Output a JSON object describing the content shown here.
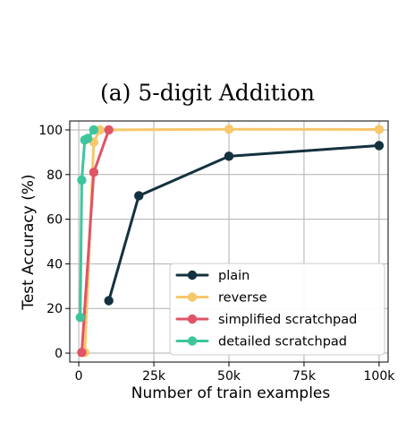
{
  "chart_data": {
    "type": "line",
    "title": "(a) 5-digit Addition",
    "xlabel": "Number of train examples",
    "ylabel": "Test Accuracy (%)",
    "xlim": [
      -3000,
      103000
    ],
    "ylim": [
      -4,
      104
    ],
    "grid": true,
    "legend_position": "bottom-right",
    "x_ticks": [
      {
        "value": 0,
        "label": "0"
      },
      {
        "value": 25000,
        "label": "25k"
      },
      {
        "value": 50000,
        "label": "50k"
      },
      {
        "value": 75000,
        "label": "75k"
      },
      {
        "value": 100000,
        "label": "100k"
      }
    ],
    "y_ticks": [
      {
        "value": 0,
        "label": "0"
      },
      {
        "value": 20,
        "label": "20"
      },
      {
        "value": 40,
        "label": "40"
      },
      {
        "value": 60,
        "label": "60"
      },
      {
        "value": 80,
        "label": "80"
      },
      {
        "value": 100,
        "label": "100"
      }
    ],
    "series": [
      {
        "name": "plain",
        "color": "#14313f",
        "points": [
          [
            10000,
            23.5
          ],
          [
            20000,
            70.5
          ],
          [
            50000,
            88.2
          ],
          [
            100000,
            93
          ]
        ]
      },
      {
        "name": "reverse",
        "color": "#f7c76b",
        "points": [
          [
            2000,
            0.3
          ],
          [
            5000,
            94.5
          ],
          [
            7000,
            100
          ],
          [
            10000,
            100
          ],
          [
            50000,
            100.3
          ],
          [
            100000,
            100.2
          ]
        ]
      },
      {
        "name": "simplified scratchpad",
        "color": "#e05467",
        "points": [
          [
            1000,
            0.3
          ],
          [
            5000,
            81
          ],
          [
            10000,
            100
          ]
        ]
      },
      {
        "name": "detailed scratchpad",
        "color": "#3fc59d",
        "points": [
          [
            500,
            16
          ],
          [
            1000,
            77.5
          ],
          [
            2000,
            95.5
          ],
          [
            3000,
            96.2
          ],
          [
            5000,
            100
          ]
        ]
      }
    ]
  }
}
